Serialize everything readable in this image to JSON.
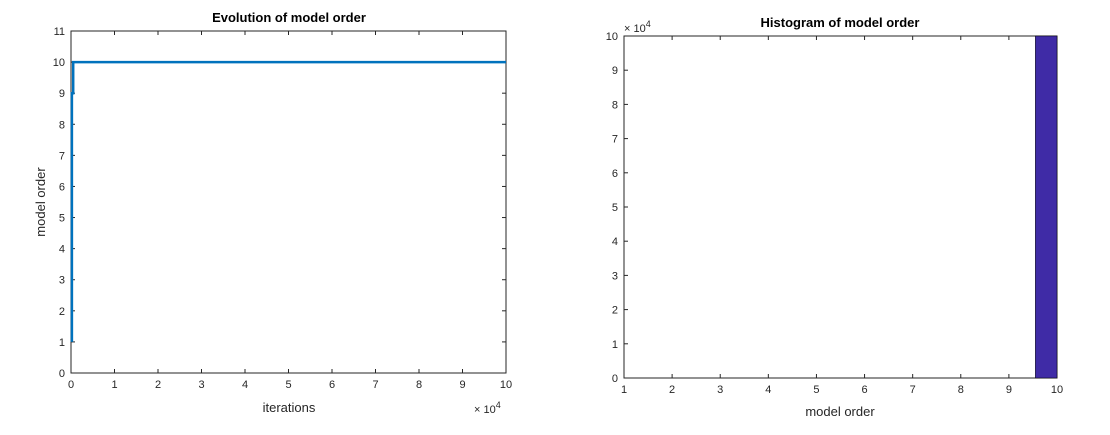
{
  "chart_data": [
    {
      "type": "line",
      "title": "Evolution of model order",
      "xlabel": "iterations",
      "ylabel": "model order",
      "x_exponent_label": "× 10",
      "x_exponent_power": "4",
      "xlim": [
        0,
        10
      ],
      "ylim": [
        0,
        11
      ],
      "xticks": [
        "0",
        "1",
        "2",
        "3",
        "4",
        "5",
        "6",
        "7",
        "8",
        "9",
        "10"
      ],
      "yticks": [
        "0",
        "1",
        "2",
        "3",
        "4",
        "5",
        "6",
        "7",
        "8",
        "9",
        "10",
        "11"
      ],
      "grid": false,
      "series": [
        {
          "x": [
            0.02,
            0.02,
            0.05,
            0.05,
            10
          ],
          "y": [
            1,
            9,
            9,
            10,
            10
          ],
          "color": "#0072BD"
        }
      ]
    },
    {
      "type": "bar",
      "title": "Histogram of model order",
      "xlabel": "model order",
      "ylabel": "",
      "y_exponent_label": "× 10",
      "y_exponent_power": "4",
      "xlim": [
        1,
        10
      ],
      "ylim": [
        0,
        10
      ],
      "xticks": [
        "1",
        "2",
        "3",
        "4",
        "5",
        "6",
        "7",
        "8",
        "9",
        "10"
      ],
      "yticks": [
        "0",
        "1",
        "2",
        "3",
        "4",
        "5",
        "6",
        "7",
        "8",
        "9",
        "10"
      ],
      "grid": false,
      "bins": [
        {
          "x0": 9.55,
          "x1": 10,
          "value": 10
        }
      ],
      "bar_color": "#3F2BA6"
    }
  ]
}
